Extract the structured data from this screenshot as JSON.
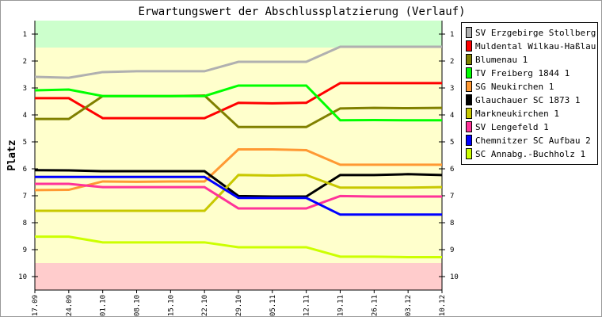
{
  "chart_data": {
    "type": "line",
    "title": "Erwartungswert der Abschlussplatzierung (Verlauf)",
    "ylabel": "Platz",
    "xlabel": "",
    "ylim": [
      0.5,
      10.5
    ],
    "y_inverted": true,
    "yticks": [
      1,
      2,
      3,
      4,
      5,
      6,
      7,
      8,
      9,
      10
    ],
    "zones": [
      {
        "from": 0.5,
        "to": 1.5,
        "color": "#ccffcc"
      },
      {
        "from": 1.5,
        "to": 9.5,
        "color": "#ffffcc"
      },
      {
        "from": 9.5,
        "to": 10.5,
        "color": "#ffcccc"
      }
    ],
    "legend_position": "right",
    "categories": [
      "17.09",
      "24.09",
      "01.10",
      "08.10",
      "15.10",
      "22.10",
      "29.10",
      "05.11",
      "12.11",
      "19.11",
      "26.11",
      "03.12",
      "10.12"
    ],
    "series": [
      {
        "name": "SV Erzgebirge Stollberg 1",
        "color": "#b0b0b0",
        "values": [
          2.59,
          2.62,
          2.41,
          2.38,
          2.38,
          2.38,
          2.03,
          2.03,
          2.03,
          1.47,
          1.47,
          1.47,
          1.47
        ]
      },
      {
        "name": "Muldental Wilkau-Haßlau 2",
        "color": "#ff0000",
        "values": [
          3.38,
          3.38,
          4.12,
          4.12,
          4.12,
          4.12,
          3.55,
          3.57,
          3.55,
          2.82,
          2.82,
          2.82,
          2.82
        ]
      },
      {
        "name": "Blumenau 1",
        "color": "#808000",
        "values": [
          4.15,
          4.15,
          3.3,
          3.3,
          3.3,
          3.28,
          4.45,
          4.45,
          4.45,
          3.76,
          3.74,
          3.75,
          3.74
        ]
      },
      {
        "name": "TV Freiberg 1844 1",
        "color": "#00ff00",
        "values": [
          3.09,
          3.06,
          3.3,
          3.3,
          3.3,
          3.3,
          2.91,
          2.91,
          2.91,
          4.2,
          4.19,
          4.2,
          4.2
        ]
      },
      {
        "name": "SG Neukirchen 1",
        "color": "#ff9933",
        "values": [
          6.79,
          6.78,
          6.47,
          6.48,
          6.47,
          6.47,
          5.28,
          5.28,
          5.31,
          5.85,
          5.85,
          5.85,
          5.85
        ]
      },
      {
        "name": "Glauchauer SC 1873 1",
        "color": "#000000",
        "values": [
          6.05,
          6.06,
          6.09,
          6.09,
          6.09,
          6.09,
          7.01,
          7.03,
          7.03,
          6.23,
          6.23,
          6.2,
          6.23
        ]
      },
      {
        "name": "Markneukirchen 1",
        "color": "#c8c800",
        "values": [
          7.56,
          7.56,
          7.56,
          7.56,
          7.56,
          7.56,
          6.23,
          6.25,
          6.23,
          6.7,
          6.7,
          6.7,
          6.68
        ]
      },
      {
        "name": "SV Lengefeld 1",
        "color": "#ff3399",
        "values": [
          6.56,
          6.56,
          6.68,
          6.68,
          6.68,
          6.68,
          7.47,
          7.47,
          7.47,
          7.01,
          7.03,
          7.03,
          7.03
        ]
      },
      {
        "name": "Chemnitzer SC Aufbau 2",
        "color": "#0000ff",
        "values": [
          6.3,
          6.3,
          6.3,
          6.3,
          6.3,
          6.3,
          7.08,
          7.08,
          7.08,
          7.7,
          7.7,
          7.7,
          7.7
        ]
      },
      {
        "name": "SC Annabg.-Buchholz 1",
        "color": "#ccff00",
        "values": [
          8.52,
          8.52,
          8.73,
          8.73,
          8.73,
          8.73,
          8.91,
          8.91,
          8.91,
          9.26,
          9.26,
          9.28,
          9.28
        ]
      }
    ]
  }
}
